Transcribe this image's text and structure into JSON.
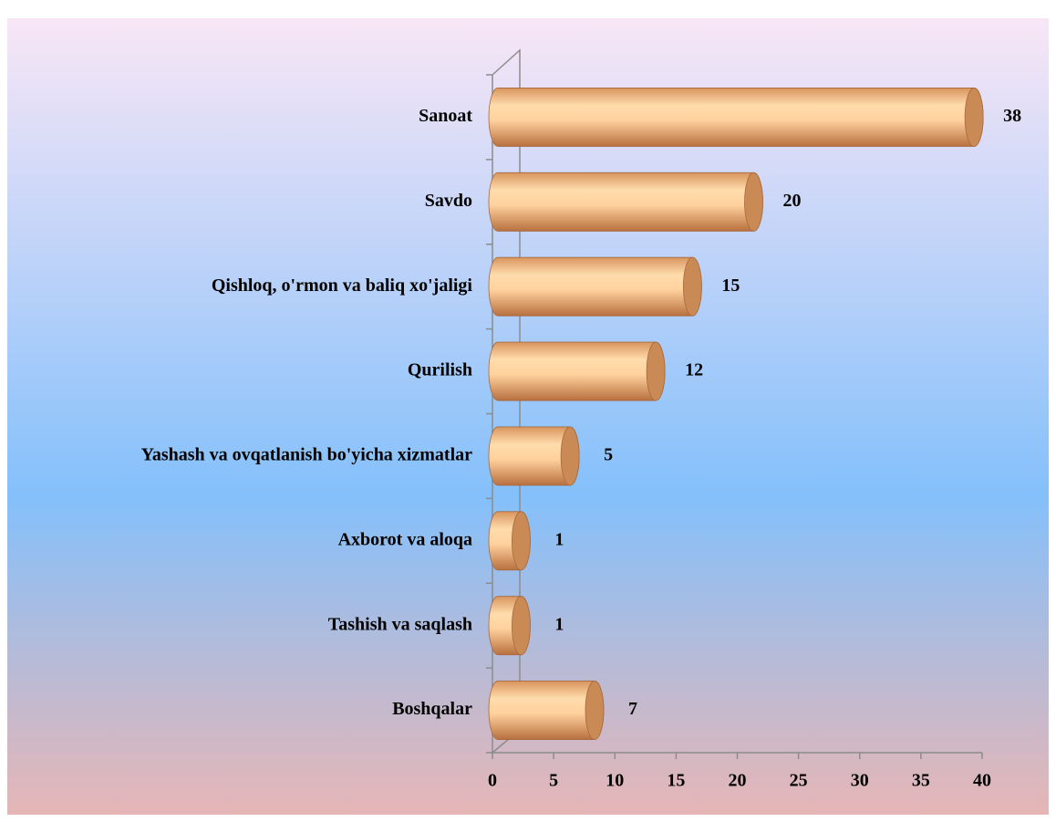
{
  "chart_data": {
    "type": "bar",
    "orientation": "horizontal",
    "categories": [
      "Sanoat",
      "Savdo",
      "Qishloq, o'rmon va baliq xo'jaligi",
      "Qurilish",
      "Yashash va ovqatlanish bo'yicha xizmatlar",
      "Axborot va aloqa",
      "Tashish va saqlash",
      "Boshqalar"
    ],
    "values": [
      38,
      20,
      15,
      12,
      5,
      1,
      1,
      7
    ],
    "color": "#f5b985",
    "xlim": [
      0,
      40
    ],
    "xticks": [
      0,
      5,
      10,
      15,
      20,
      25,
      30,
      35,
      40
    ]
  }
}
